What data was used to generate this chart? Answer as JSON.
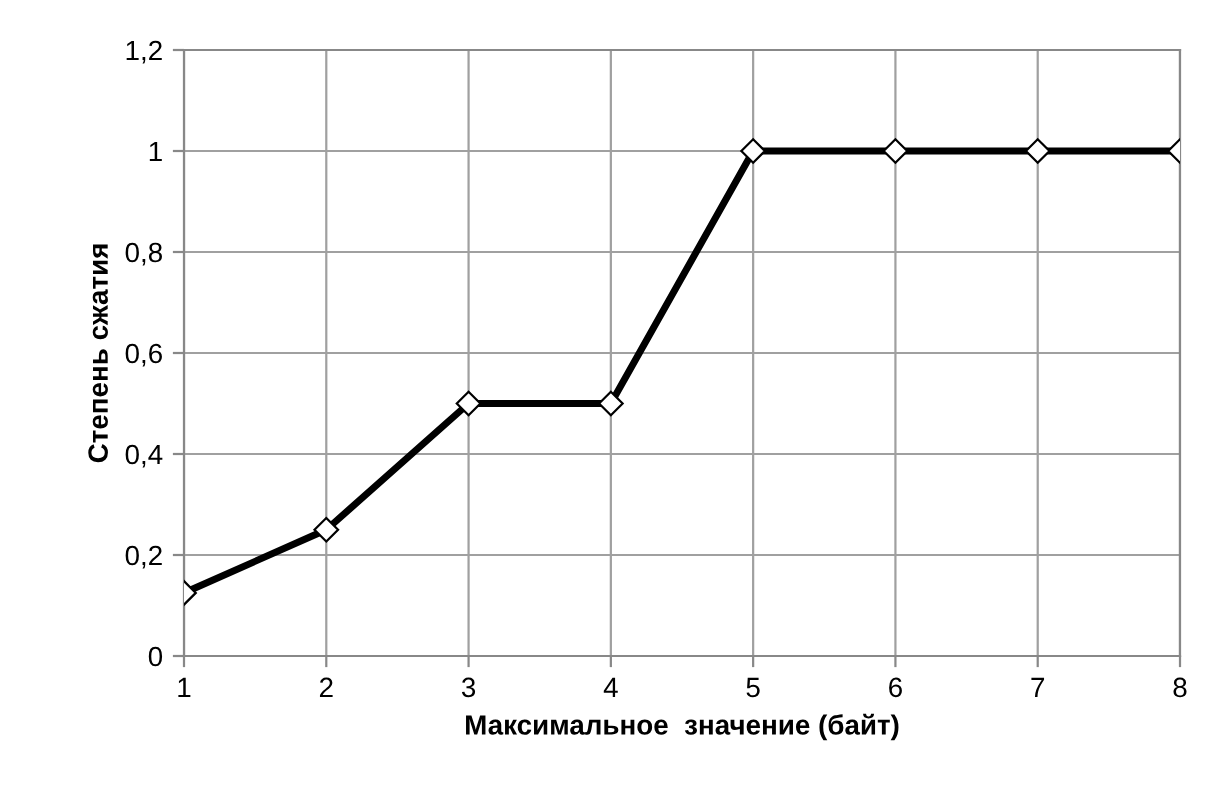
{
  "chart_data": {
    "type": "line",
    "xlabel": "Максимальное  значение (байт)",
    "ylabel": "Степень сжатия",
    "x": [
      1,
      2,
      3,
      4,
      5,
      6,
      7,
      8
    ],
    "series": [
      {
        "color": "#000000",
        "values": [
          0.125,
          0.25,
          0.5,
          0.5,
          1,
          1,
          1,
          1
        ]
      }
    ],
    "xlim": [
      1,
      8
    ],
    "xticks": [
      1,
      2,
      3,
      4,
      5,
      6,
      7,
      8
    ],
    "ylim": [
      0,
      1.2
    ],
    "yticks": [
      {
        "value": 0,
        "label": "0"
      },
      {
        "value": 0.2,
        "label": "0,2"
      },
      {
        "value": 0.4,
        "label": "0,4"
      },
      {
        "value": 0.6,
        "label": "0,6"
      },
      {
        "value": 0.8,
        "label": "0,8"
      },
      {
        "value": 1,
        "label": "1"
      },
      {
        "value": 1.2,
        "label": "1,2"
      }
    ],
    "grid": true,
    "marker": "diamond",
    "line_style": "solid"
  }
}
